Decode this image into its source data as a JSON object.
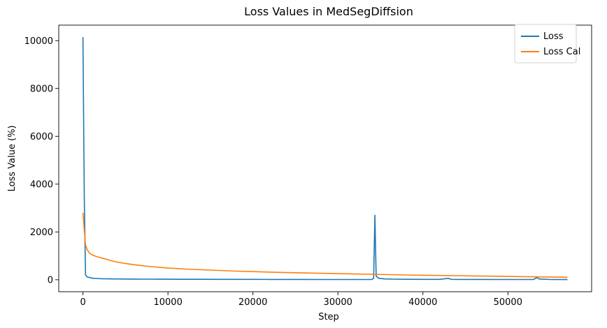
{
  "chart_data": {
    "type": "line",
    "title": "Loss Values in MedSegDiffsion",
    "xlabel": "Step",
    "ylabel": "Loss Value (%)",
    "xlim": [
      -2850,
      59850
    ],
    "ylim": [
      -500,
      10650
    ],
    "xticks": [
      0,
      10000,
      20000,
      30000,
      40000,
      50000
    ],
    "yticks": [
      0,
      2000,
      4000,
      6000,
      8000,
      10000
    ],
    "grid": false,
    "legend_position": "upper-right",
    "series": [
      {
        "name": "Loss",
        "color": "#1f77b4",
        "points": [
          [
            0,
            10150
          ],
          [
            150,
            3500
          ],
          [
            300,
            200
          ],
          [
            500,
            120
          ],
          [
            800,
            90
          ],
          [
            1200,
            60
          ],
          [
            1600,
            55
          ],
          [
            2000,
            45
          ],
          [
            2500,
            40
          ],
          [
            3000,
            38
          ],
          [
            3500,
            35
          ],
          [
            4000,
            33
          ],
          [
            5000,
            30
          ],
          [
            6000,
            28
          ],
          [
            7000,
            26
          ],
          [
            8000,
            25
          ],
          [
            9000,
            23
          ],
          [
            10000,
            22
          ],
          [
            12000,
            20
          ],
          [
            14000,
            19
          ],
          [
            16000,
            18
          ],
          [
            18000,
            17
          ],
          [
            20000,
            16
          ],
          [
            22000,
            15
          ],
          [
            24000,
            14
          ],
          [
            26000,
            13
          ],
          [
            28000,
            12
          ],
          [
            30000,
            12
          ],
          [
            32000,
            11
          ],
          [
            34000,
            11
          ],
          [
            34200,
            60
          ],
          [
            34350,
            2700
          ],
          [
            34500,
            150
          ],
          [
            34800,
            60
          ],
          [
            35500,
            35
          ],
          [
            36500,
            25
          ],
          [
            38000,
            20
          ],
          [
            40000,
            18
          ],
          [
            42000,
            18
          ],
          [
            43000,
            60
          ],
          [
            43300,
            18
          ],
          [
            45000,
            15
          ],
          [
            47000,
            13
          ],
          [
            49000,
            12
          ],
          [
            51000,
            11
          ],
          [
            53000,
            12
          ],
          [
            53400,
            90
          ],
          [
            53700,
            30
          ],
          [
            55000,
            10
          ],
          [
            57000,
            9
          ]
        ]
      },
      {
        "name": "Loss Cal",
        "color": "#ff7f0e",
        "points": [
          [
            0,
            2800
          ],
          [
            150,
            2100
          ],
          [
            300,
            1450
          ],
          [
            500,
            1250
          ],
          [
            800,
            1100
          ],
          [
            1200,
            1020
          ],
          [
            1600,
            970
          ],
          [
            2000,
            930
          ],
          [
            2500,
            880
          ],
          [
            3000,
            830
          ],
          [
            3500,
            780
          ],
          [
            4000,
            740
          ],
          [
            5000,
            680
          ],
          [
            6000,
            630
          ],
          [
            7000,
            590
          ],
          [
            8000,
            550
          ],
          [
            9000,
            520
          ],
          [
            10000,
            490
          ],
          [
            12000,
            450
          ],
          [
            14000,
            420
          ],
          [
            16000,
            390
          ],
          [
            18000,
            360
          ],
          [
            20000,
            340
          ],
          [
            22000,
            320
          ],
          [
            24000,
            300
          ],
          [
            26000,
            285
          ],
          [
            28000,
            270
          ],
          [
            30000,
            255
          ],
          [
            32000,
            240
          ],
          [
            34000,
            230
          ],
          [
            36000,
            215
          ],
          [
            38000,
            200
          ],
          [
            40000,
            190
          ],
          [
            42000,
            180
          ],
          [
            44000,
            170
          ],
          [
            46000,
            160
          ],
          [
            48000,
            150
          ],
          [
            50000,
            140
          ],
          [
            52000,
            130
          ],
          [
            54000,
            120
          ],
          [
            56000,
            110
          ],
          [
            57000,
            105
          ]
        ]
      }
    ]
  }
}
